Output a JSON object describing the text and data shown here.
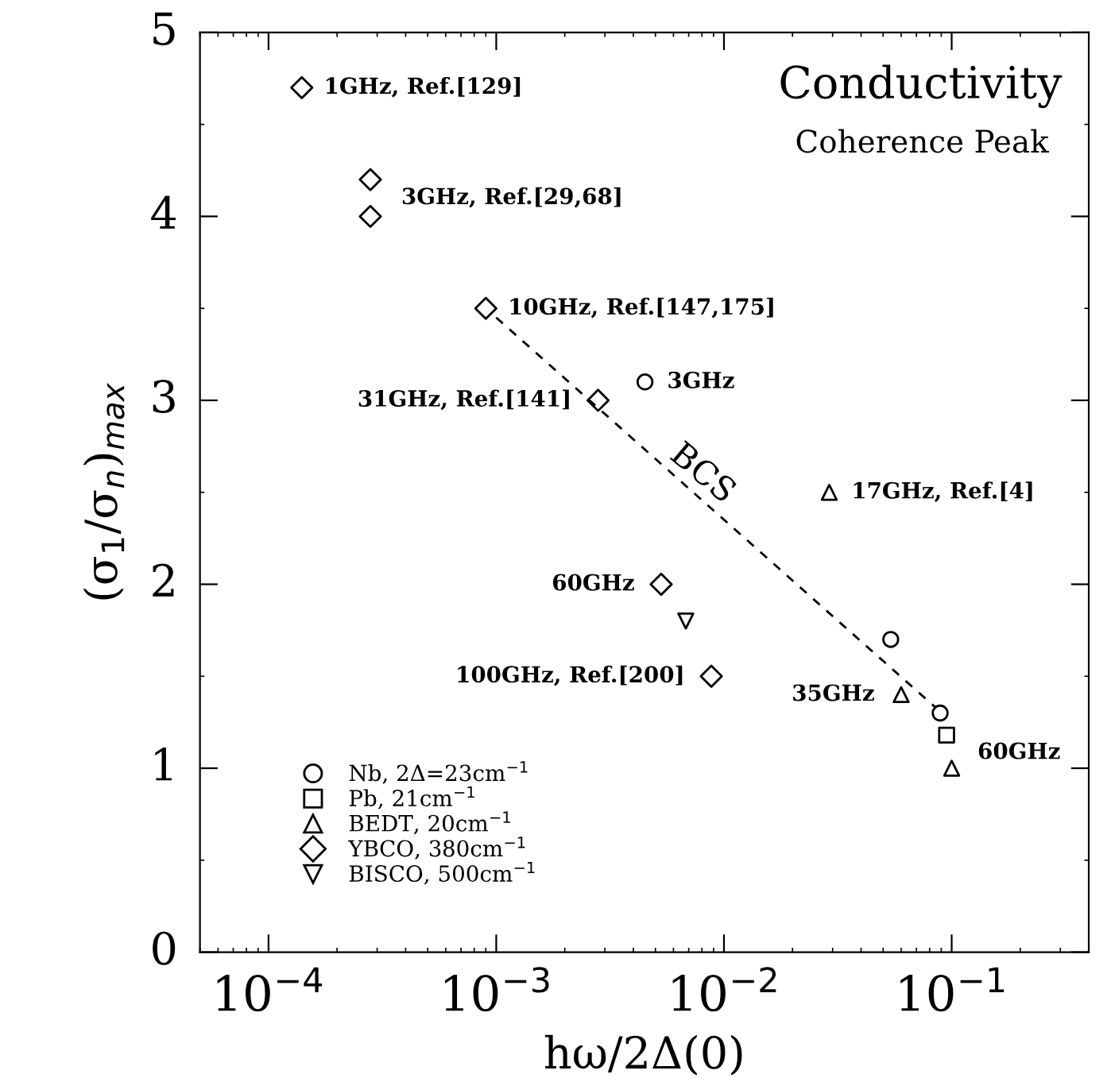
{
  "chart_data": {
    "type": "scatter",
    "title": "Conductivity",
    "subtitle": "Coherence Peak",
    "xlabel": "hω/2Δ(0)",
    "ylabel": "(σ$_{1}$/σ$_{n}$)$_{max}$",
    "log": "x",
    "xlim": [
      5e-05,
      0.4
    ],
    "ylim": [
      0,
      5
    ],
    "xticks": [
      {
        "value": 0.0001,
        "label": "10$^{−4}$"
      },
      {
        "value": 0.001,
        "label": "10$^{−3}$"
      },
      {
        "value": 0.01,
        "label": "10$^{−2}$"
      },
      {
        "value": 0.1,
        "label": "10$^{−1}$"
      }
    ],
    "yticks": [
      0,
      1,
      2,
      3,
      4,
      5
    ],
    "grid": false,
    "legend": "bottom left",
    "series": [
      {
        "name": "Nb, 2Δ=23cm$^{−1}$",
        "color": "#000000",
        "marker": "circle",
        "x": [
          0.0045,
          0.054,
          0.089
        ],
        "values": [
          3.1,
          1.7,
          1.3
        ]
      },
      {
        "name": "Pb, 21cm$^{−1}$",
        "color": "#000000",
        "marker": "square",
        "x": [
          0.095
        ],
        "values": [
          1.18
        ]
      },
      {
        "name": "BEDT, 20cm$^{−1}$",
        "color": "#000000",
        "marker": "triangle",
        "x": [
          0.029,
          0.06,
          0.1
        ],
        "values": [
          2.5,
          1.4,
          1.0
        ]
      },
      {
        "name": "YBCO, 380cm$^{−1}$",
        "color": "#000000",
        "marker": "diamond",
        "x": [
          0.00014,
          0.00028,
          0.00028,
          0.0009,
          0.0028,
          0.0053,
          0.0088
        ],
        "values": [
          4.7,
          4.2,
          4.0,
          3.5,
          3.0,
          2.0,
          1.5
        ]
      },
      {
        "name": "BISCO, 500cm$^{−1}$",
        "color": "#000000",
        "marker": "triangle-down",
        "x": [
          0.0068
        ],
        "values": [
          1.8
        ]
      },
      {
        "type": "line",
        "color": "#000000",
        "line_style": "dashed",
        "marker": "none",
        "x": [
          0.001,
          0.085
        ],
        "values": [
          3.45,
          1.33
        ]
      }
    ],
    "annotations": [
      {
        "text": "1GHz, Ref.[129]",
        "x": 0.00014,
        "y": 4.7
      },
      {
        "text": "3GHz, Ref.[29,68]",
        "x": 0.00028,
        "y": 4.1
      },
      {
        "text": "10GHz, Ref.[147,175]",
        "x": 0.0009,
        "y": 3.5
      },
      {
        "text": "31GHz, Ref.[141]",
        "x": 0.0028,
        "y": 3.0
      },
      {
        "text": "3GHz",
        "x": 0.0045,
        "y": 3.1
      },
      "BCS",
      {
        "text": "17GHz, Ref.[4]",
        "x": 0.029,
        "y": 2.5
      },
      {
        "text": "60GHz",
        "x": 0.0053,
        "y": 2.0
      },
      {
        "text": "100GHz, Ref.[200]",
        "x": 0.0088,
        "y": 1.5
      },
      {
        "text": "35GHz",
        "x": 0.06,
        "y": 1.4
      },
      {
        "text": "60GHz",
        "x": 0.095,
        "y": 1.18
      }
    ]
  }
}
